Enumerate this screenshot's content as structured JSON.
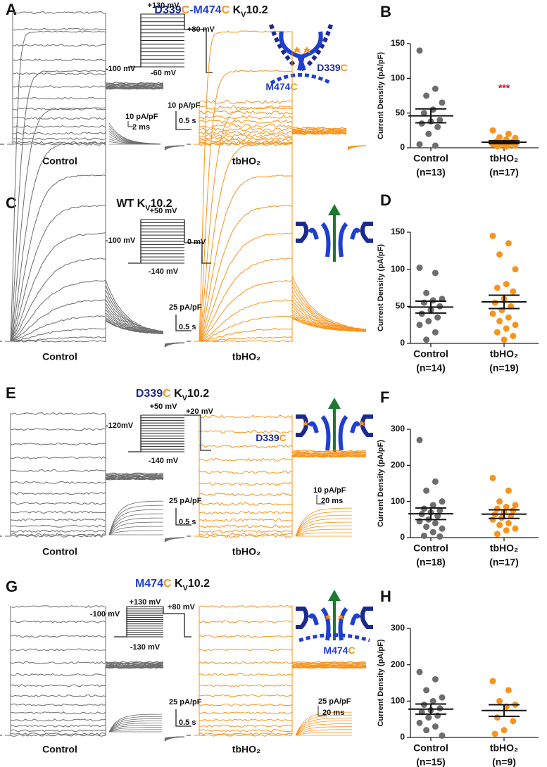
{
  "panels": [
    {
      "label": "A",
      "title": [
        {
          "text": "D339",
          "color": "#1c2a8c"
        },
        {
          "text": "C",
          "color": "#f7941d"
        },
        {
          "text": "-M474",
          "color": "#1f3fd0"
        },
        {
          "text": "C",
          "color": "#f7941d"
        },
        {
          "text": " K"
        },
        {
          "text": "V",
          "sub": true
        },
        {
          "text": "10.2"
        }
      ],
      "protocol": [
        "+130 mV",
        "+80 mV",
        "-100 mV",
        "-60 mV"
      ],
      "scale": [
        "10 pA/pF",
        "0.5 s"
      ],
      "inset_scale": [
        "10 pA/pF",
        "2 ms"
      ],
      "conditions": [
        "Control",
        "tbHO₂"
      ],
      "diagram_labels": [
        [
          {
            "text": "D339",
            "color": "#1c2a8c"
          },
          {
            "text": "C",
            "color": "#f7941d"
          }
        ],
        [
          {
            "text": "M474",
            "color": "#1f3fd0"
          },
          {
            "text": "C",
            "color": "#f7941d"
          }
        ]
      ]
    },
    {
      "label": "C",
      "title": [
        {
          "text": "WT K"
        },
        {
          "text": "V",
          "sub": true
        },
        {
          "text": "10.2"
        }
      ],
      "protocol": [
        "+50 mV",
        "0 mV",
        "-100 mV",
        "-140 mV"
      ],
      "scale": [
        "25 pA/pF",
        "0.5 s"
      ],
      "conditions": [
        "Control",
        "tbHO₂"
      ]
    },
    {
      "label": "E",
      "title": [
        {
          "text": "D339",
          "color": "#1c2a8c"
        },
        {
          "text": "C",
          "color": "#f7941d"
        },
        {
          "text": " K"
        },
        {
          "text": "V",
          "sub": true
        },
        {
          "text": "10.2"
        }
      ],
      "protocol": [
        "+50 mV",
        "+20 mV",
        "-120mV",
        "-140 mV"
      ],
      "scale": [
        "25 pA/pF",
        "0.5 s"
      ],
      "inset_scale": [
        "10 pA/pF",
        "20 ms"
      ],
      "conditions": [
        "Control",
        "tbHO₂"
      ],
      "diagram_labels": [
        [
          {
            "text": "D339",
            "color": "#1c2a8c"
          },
          {
            "text": "C",
            "color": "#f7941d"
          }
        ]
      ]
    },
    {
      "label": "G",
      "title": [
        {
          "text": "M474",
          "color": "#1f3fd0"
        },
        {
          "text": "C",
          "color": "#f7941d"
        },
        {
          "text": " K"
        },
        {
          "text": "V",
          "sub": true
        },
        {
          "text": "10.2"
        }
      ],
      "protocol": [
        "+130 mV",
        "+80 mV",
        "-100 mV",
        "-130 mV"
      ],
      "scale": [
        "25 pA/pF",
        "0.5 s"
      ],
      "inset_scale": [
        "25 pA/pF",
        "20 ms"
      ],
      "conditions": [
        "Control",
        "tbHO₂"
      ],
      "diagram_labels": [
        [
          {
            "text": "M474",
            "color": "#1f3fd0"
          },
          {
            "text": "C",
            "color": "#f7941d"
          }
        ]
      ]
    }
  ],
  "chart_data": [
    {
      "type": "scatter",
      "label": "B",
      "ylabel": "Current Density (pA/pF)",
      "categories": [
        "Control",
        "tbHO₂"
      ],
      "n_labels": [
        "(n=13)",
        "(n=17)"
      ],
      "ylim": [
        0,
        150
      ],
      "yticks": [
        0,
        50,
        100,
        150
      ],
      "series": [
        {
          "color": "#6d6d6d",
          "values": [
            140,
            85,
            75,
            65,
            55,
            50,
            40,
            38,
            35,
            30,
            20,
            5,
            3
          ],
          "mean": 46,
          "sem": 10
        },
        {
          "color": "#f7941d",
          "values": [
            25,
            20,
            15,
            14,
            12,
            10,
            9,
            8,
            8,
            7,
            6,
            5,
            4,
            3,
            3,
            2,
            2
          ],
          "mean": 8,
          "sem": 2
        }
      ],
      "annotation": "***",
      "annotation_color": "#c0102a"
    },
    {
      "type": "scatter",
      "label": "D",
      "ylabel": "Current Density (pA/pF)",
      "categories": [
        "Control",
        "tbHO₂"
      ],
      "n_labels": [
        "(n=14)",
        "(n=19)"
      ],
      "ylim": [
        0,
        150
      ],
      "yticks": [
        0,
        50,
        100,
        150
      ],
      "series": [
        {
          "color": "#6d6d6d",
          "values": [
            102,
            95,
            68,
            60,
            58,
            55,
            50,
            45,
            40,
            35,
            30,
            25,
            15,
            5
          ],
          "mean": 49,
          "sem": 8
        },
        {
          "color": "#f7941d",
          "values": [
            145,
            135,
            120,
            100,
            80,
            75,
            70,
            60,
            55,
            50,
            45,
            40,
            35,
            30,
            25,
            20,
            15,
            10,
            5
          ],
          "mean": 56,
          "sem": 9
        }
      ]
    },
    {
      "type": "scatter",
      "label": "F",
      "ylabel": "Current Density (pA/pF)",
      "categories": [
        "Control",
        "tbHO₂"
      ],
      "n_labels": [
        "(n=18)",
        "(n=17)"
      ],
      "ylim": [
        0,
        300
      ],
      "yticks": [
        0,
        100,
        200,
        300
      ],
      "series": [
        {
          "color": "#6d6d6d",
          "values": [
            270,
            155,
            130,
            100,
            90,
            80,
            75,
            70,
            65,
            60,
            50,
            45,
            40,
            30,
            25,
            15,
            5,
            3
          ],
          "mean": 66,
          "sem": 16
        },
        {
          "color": "#f7941d",
          "values": [
            165,
            130,
            100,
            90,
            85,
            80,
            75,
            70,
            65,
            60,
            55,
            50,
            40,
            35,
            25,
            20,
            10
          ],
          "mean": 65,
          "sem": 12
        }
      ]
    },
    {
      "type": "scatter",
      "label": "H",
      "ylabel": "Current Density (pA/pF)",
      "categories": [
        "Control",
        "tbHO₂"
      ],
      "n_labels": [
        "(n=15)",
        "(n=9)"
      ],
      "ylim": [
        0,
        300
      ],
      "yticks": [
        0,
        100,
        200,
        300
      ],
      "series": [
        {
          "color": "#6d6d6d",
          "values": [
            180,
            160,
            130,
            110,
            100,
            90,
            80,
            75,
            70,
            60,
            55,
            40,
            30,
            20,
            5
          ],
          "mean": 78,
          "sem": 14
        },
        {
          "color": "#f7941d",
          "values": [
            155,
            130,
            100,
            90,
            85,
            55,
            45,
            20,
            10
          ],
          "mean": 74,
          "sem": 16
        }
      ]
    }
  ]
}
